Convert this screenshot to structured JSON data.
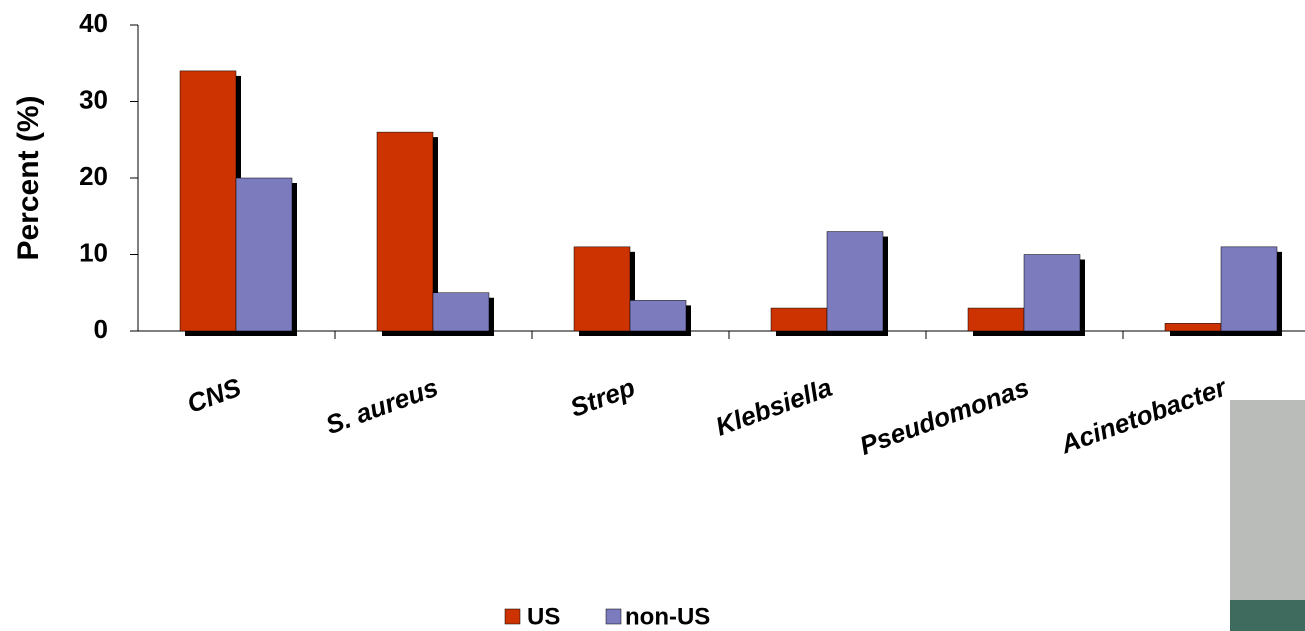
{
  "chart_data": {
    "type": "bar",
    "y_label": "Percent (%)",
    "categories": [
      "CNS",
      "S. aureus",
      "Strep",
      "Klebsiella",
      "Pseudomonas",
      "Acinetobacter"
    ],
    "series": [
      {
        "name": "US",
        "color": "#cc3300",
        "values": [
          34,
          26,
          11,
          3,
          3,
          1
        ]
      },
      {
        "name": "non-US",
        "color": "#7b7bbd",
        "values": [
          20,
          5,
          4,
          13,
          10,
          11
        ]
      }
    ],
    "ylim": [
      0,
      40
    ],
    "yticks": [
      0,
      10,
      20,
      30,
      40
    ]
  }
}
